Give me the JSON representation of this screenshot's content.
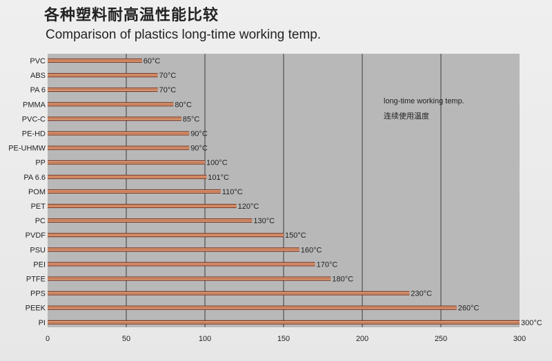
{
  "chart_data": {
    "type": "bar",
    "orientation": "horizontal",
    "title": "各种塑料耐高温性能比较",
    "subtitle": "Comparison of plastics long-time working temp.",
    "annotation_en": "long-time working temp.",
    "annotation_cn": "连续使用温度",
    "categories": [
      "PVC",
      "ABS",
      "PA 6",
      "PMMA",
      "PVC-C",
      "PE-HD",
      "PE-UHMW",
      "PP",
      "PA 6.6",
      "POM",
      "PET",
      "PC",
      "PVDF",
      "PSU",
      "PEI",
      "PTFE",
      "PPS",
      "PEEK",
      "PI"
    ],
    "values": [
      60,
      70,
      70,
      80,
      85,
      90,
      90,
      100,
      101,
      110,
      120,
      130,
      150,
      160,
      170,
      180,
      230,
      260,
      300
    ],
    "value_labels": [
      "60°C",
      "70°C",
      "70°C",
      "80°C",
      "85°C",
      "90°C",
      "90°C",
      "100°C",
      "101°C",
      "110°C",
      "120°C",
      "130°C",
      "150°C",
      "160°C",
      "170°C",
      "180°C",
      "230°C",
      "260°C",
      "300°C"
    ],
    "xticks": [
      "0",
      "50",
      "100",
      "150",
      "200",
      "250",
      "300"
    ],
    "xlim": [
      0,
      300
    ],
    "grid": true,
    "colors": {
      "plot_bg": "#b8b8b8",
      "bar_outer": "#7a2e22",
      "bar_inner": "#e6bf8c",
      "bar_stripe": "#c0503a",
      "grid": "#3a3a3a"
    }
  }
}
